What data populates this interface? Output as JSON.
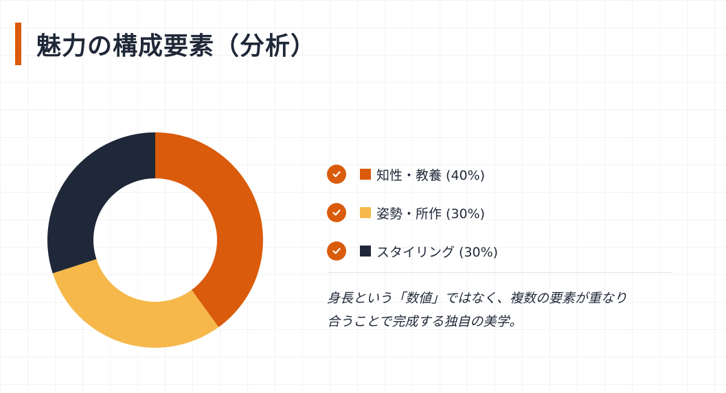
{
  "header": {
    "title": "魅力の構成要素（分析）",
    "accent_color": "#d95b0b"
  },
  "chart_data": {
    "type": "pie",
    "variant": "donut",
    "categories": [
      "知性・教養",
      "姿勢・所作",
      "スタイリング"
    ],
    "values": [
      40,
      30,
      30
    ],
    "colors": [
      "#d95b0b",
      "#f6b84b",
      "#1f2838"
    ],
    "title": "",
    "legend_position": "right"
  },
  "legend": {
    "check_icon": "check-circle-icon",
    "items": [
      {
        "label": "知性・教養 (40%)",
        "color": "#d95b0b"
      },
      {
        "label": "姿勢・所作 (30%)",
        "color": "#f6b84b"
      },
      {
        "label": "スタイリング (30%)",
        "color": "#1f2838"
      }
    ]
  },
  "note": {
    "line1": "身長という「数値」ではなく、複数の要素が重なり",
    "line2": "合うことで完成する独自の美学。"
  }
}
